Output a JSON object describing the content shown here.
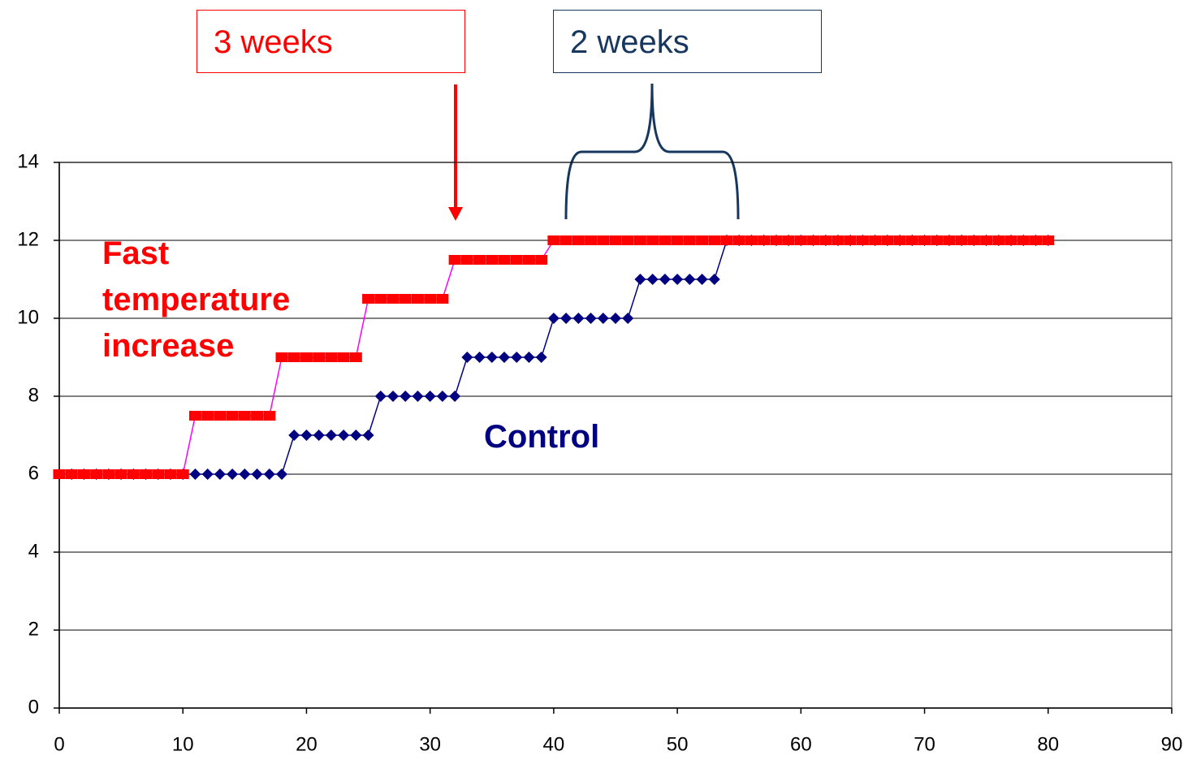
{
  "chart_data": {
    "type": "line",
    "x": [
      0,
      1,
      2,
      3,
      4,
      5,
      6,
      7,
      8,
      9,
      10,
      11,
      12,
      13,
      14,
      15,
      16,
      17,
      18,
      19,
      20,
      21,
      22,
      23,
      24,
      25,
      26,
      27,
      28,
      29,
      30,
      31,
      32,
      33,
      34,
      35,
      36,
      37,
      38,
      39,
      40,
      41,
      42,
      43,
      44,
      45,
      46,
      47,
      48,
      49,
      50,
      51,
      52,
      53,
      54,
      55,
      56,
      57,
      58,
      59,
      60,
      61,
      62,
      63,
      64,
      65,
      66,
      67,
      68,
      69,
      70,
      71,
      72,
      73,
      74,
      75,
      76,
      77,
      78,
      79,
      80
    ],
    "series": [
      {
        "name": "Control",
        "color": "#000080",
        "line_color": "#000080",
        "marker": "diamond",
        "values": [
          6,
          6,
          6,
          6,
          6,
          6,
          6,
          6,
          6,
          6,
          6,
          6,
          6,
          6,
          6,
          6,
          6,
          6,
          6,
          7,
          7,
          7,
          7,
          7,
          7,
          7,
          8,
          8,
          8,
          8,
          8,
          8,
          8,
          9,
          9,
          9,
          9,
          9,
          9,
          9,
          10,
          10,
          10,
          10,
          10,
          10,
          10,
          11,
          11,
          11,
          11,
          11,
          11,
          11,
          12,
          12,
          12,
          12,
          12,
          12,
          12,
          12,
          12,
          12,
          12,
          12,
          12,
          12,
          12,
          12,
          12,
          12,
          12,
          12,
          12,
          12,
          12,
          12,
          12,
          12,
          12
        ]
      },
      {
        "name": "Fast temperature increase",
        "color": "#ff0000",
        "line_color": "#ff00ff",
        "marker": "square",
        "values": [
          6,
          6,
          6,
          6,
          6,
          6,
          6,
          6,
          6,
          6,
          6,
          7.5,
          7.5,
          7.5,
          7.5,
          7.5,
          7.5,
          7.5,
          9,
          9,
          9,
          9,
          9,
          9,
          9,
          10.5,
          10.5,
          10.5,
          10.5,
          10.5,
          10.5,
          10.5,
          11.5,
          11.5,
          11.5,
          11.5,
          11.5,
          11.5,
          11.5,
          11.5,
          12,
          12,
          12,
          12,
          12,
          12,
          12,
          12,
          12,
          12,
          12,
          12,
          12,
          12,
          12,
          12,
          12,
          12,
          12,
          12,
          12,
          12,
          12,
          12,
          12,
          12,
          12,
          12,
          12,
          12,
          12,
          12,
          12,
          12,
          12,
          12,
          12,
          12,
          12,
          12,
          12
        ]
      }
    ],
    "xlim": [
      0,
      90
    ],
    "xticks": [
      0,
      10,
      20,
      30,
      40,
      50,
      60,
      70,
      80,
      90
    ],
    "ylim": [
      0,
      14
    ],
    "yticks": [
      0,
      2,
      4,
      6,
      8,
      10,
      12,
      14
    ],
    "grid": true,
    "annotations": [
      "3 weeks",
      "2 weeks"
    ]
  }
}
